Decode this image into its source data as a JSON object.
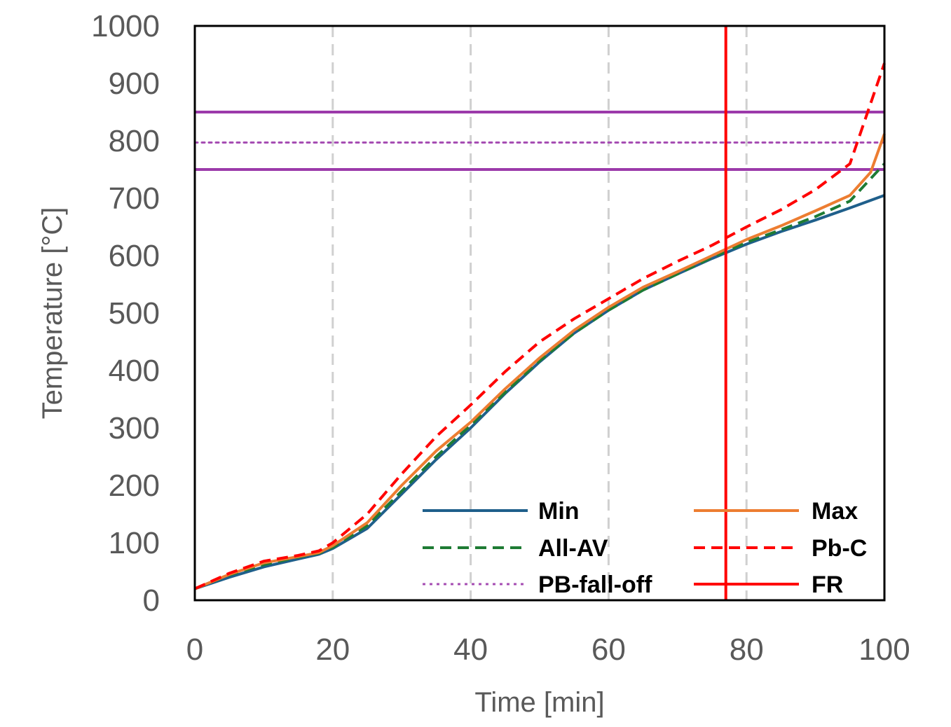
{
  "chart_data": {
    "type": "line",
    "title": "",
    "xlabel": "Time [min]",
    "ylabel": "Temperature [°C]",
    "xlim": [
      0,
      100
    ],
    "ylim": [
      0,
      1000
    ],
    "x_ticks": [
      0,
      20,
      40,
      60,
      80,
      100
    ],
    "y_ticks": [
      0,
      100,
      200,
      300,
      400,
      500,
      600,
      700,
      800,
      900,
      1000
    ],
    "x_tick_labels": [
      "0",
      "20",
      "40",
      "60",
      "80",
      "100"
    ],
    "y_tick_labels": [
      "0",
      "100",
      "200",
      "300",
      "400",
      "500",
      "600",
      "700",
      "800",
      "900",
      "1000"
    ],
    "grid": "vertical dashed at x ticks",
    "legend_position": "bottom-right inside plot, two columns",
    "series": [
      {
        "name": "Min",
        "color": "#1f5f8b",
        "style": "solid",
        "points": [
          [
            0,
            20
          ],
          [
            5,
            40
          ],
          [
            10,
            58
          ],
          [
            15,
            72
          ],
          [
            18,
            80
          ],
          [
            20,
            90
          ],
          [
            25,
            125
          ],
          [
            30,
            185
          ],
          [
            35,
            245
          ],
          [
            40,
            300
          ],
          [
            45,
            360
          ],
          [
            50,
            415
          ],
          [
            55,
            465
          ],
          [
            60,
            505
          ],
          [
            65,
            540
          ],
          [
            70,
            568
          ],
          [
            75,
            595
          ],
          [
            80,
            620
          ],
          [
            85,
            642
          ],
          [
            90,
            662
          ],
          [
            95,
            683
          ],
          [
            100,
            705
          ]
        ]
      },
      {
        "name": "Max",
        "color": "#ed7d31",
        "style": "solid",
        "points": [
          [
            0,
            20
          ],
          [
            5,
            45
          ],
          [
            10,
            65
          ],
          [
            15,
            76
          ],
          [
            18,
            83
          ],
          [
            20,
            95
          ],
          [
            25,
            135
          ],
          [
            30,
            200
          ],
          [
            35,
            260
          ],
          [
            40,
            310
          ],
          [
            45,
            368
          ],
          [
            50,
            422
          ],
          [
            55,
            470
          ],
          [
            60,
            510
          ],
          [
            65,
            545
          ],
          [
            70,
            572
          ],
          [
            75,
            600
          ],
          [
            80,
            628
          ],
          [
            85,
            652
          ],
          [
            90,
            678
          ],
          [
            95,
            705
          ],
          [
            98,
            745
          ],
          [
            100,
            812
          ]
        ]
      },
      {
        "name": "All-AV",
        "color": "#1e7b34",
        "style": "dashed",
        "points": [
          [
            0,
            20
          ],
          [
            5,
            44
          ],
          [
            10,
            62
          ],
          [
            15,
            75
          ],
          [
            18,
            82
          ],
          [
            20,
            92
          ],
          [
            25,
            130
          ],
          [
            30,
            190
          ],
          [
            35,
            250
          ],
          [
            40,
            305
          ],
          [
            45,
            362
          ],
          [
            50,
            417
          ],
          [
            55,
            465
          ],
          [
            60,
            505
          ],
          [
            65,
            540
          ],
          [
            70,
            568
          ],
          [
            75,
            597
          ],
          [
            80,
            623
          ],
          [
            85,
            645
          ],
          [
            90,
            668
          ],
          [
            95,
            695
          ],
          [
            100,
            760
          ]
        ]
      },
      {
        "name": "Pb-C",
        "color": "#ff0000",
        "style": "dashed",
        "points": [
          [
            0,
            20
          ],
          [
            5,
            47
          ],
          [
            10,
            68
          ],
          [
            15,
            78
          ],
          [
            18,
            86
          ],
          [
            20,
            100
          ],
          [
            25,
            150
          ],
          [
            30,
            220
          ],
          [
            35,
            285
          ],
          [
            40,
            340
          ],
          [
            45,
            398
          ],
          [
            50,
            450
          ],
          [
            55,
            490
          ],
          [
            60,
            525
          ],
          [
            65,
            560
          ],
          [
            70,
            590
          ],
          [
            75,
            618
          ],
          [
            80,
            650
          ],
          [
            85,
            680
          ],
          [
            90,
            715
          ],
          [
            95,
            760
          ],
          [
            100,
            935
          ]
        ]
      },
      {
        "name": "PB-fall-off",
        "color": "#a64db3",
        "style": "dotted",
        "points": [
          [
            0,
            797
          ],
          [
            100,
            797
          ]
        ]
      },
      {
        "name": "FR",
        "color": "#ff0000",
        "style": "solid",
        "points": [
          [
            77,
            0
          ],
          [
            77,
            1000
          ]
        ]
      }
    ],
    "reference_lines": [
      {
        "orientation": "horizontal",
        "y": 850,
        "color": "#9c3aaa",
        "style": "solid"
      },
      {
        "orientation": "horizontal",
        "y": 750,
        "color": "#9c3aaa",
        "style": "solid"
      }
    ],
    "legend_order": [
      "Min",
      "Max",
      "All-AV",
      "Pb-C",
      "PB-fall-off",
      "FR"
    ]
  }
}
